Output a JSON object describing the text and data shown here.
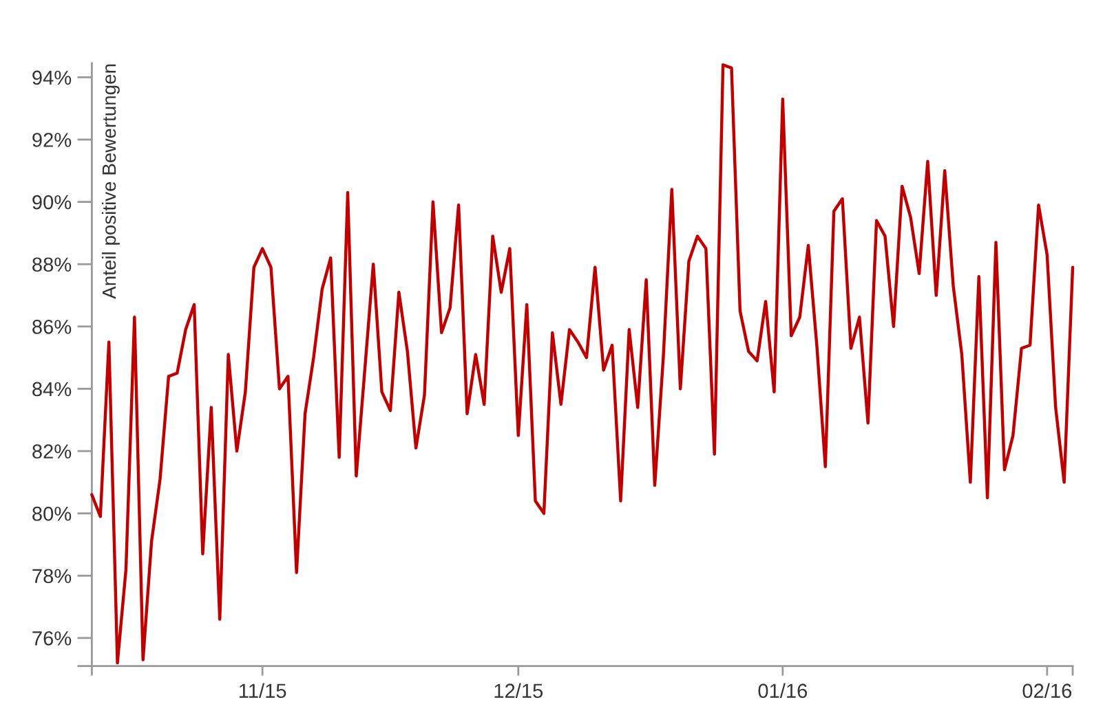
{
  "chart_data": {
    "type": "line",
    "ylabel": "Anteil positive Bewertungen",
    "x": [
      "2015-10-12",
      "2015-10-13",
      "2015-10-14",
      "2015-10-15",
      "2015-10-16",
      "2015-10-17",
      "2015-10-18",
      "2015-10-19",
      "2015-10-20",
      "2015-10-21",
      "2015-10-22",
      "2015-10-23",
      "2015-10-24",
      "2015-10-25",
      "2015-10-26",
      "2015-10-27",
      "2015-10-28",
      "2015-10-29",
      "2015-10-30",
      "2015-10-31",
      "2015-11-01",
      "2015-11-02",
      "2015-11-03",
      "2015-11-04",
      "2015-11-05",
      "2015-11-06",
      "2015-11-07",
      "2015-11-08",
      "2015-11-09",
      "2015-11-10",
      "2015-11-11",
      "2015-11-12",
      "2015-11-13",
      "2015-11-14",
      "2015-11-15",
      "2015-11-16",
      "2015-11-17",
      "2015-11-18",
      "2015-11-19",
      "2015-11-20",
      "2015-11-21",
      "2015-11-22",
      "2015-11-23",
      "2015-11-24",
      "2015-11-25",
      "2015-11-26",
      "2015-11-27",
      "2015-11-28",
      "2015-11-29",
      "2015-11-30",
      "2015-12-01",
      "2015-12-02",
      "2015-12-03",
      "2015-12-04",
      "2015-12-05",
      "2015-12-06",
      "2015-12-07",
      "2015-12-08",
      "2015-12-09",
      "2015-12-10",
      "2015-12-11",
      "2015-12-12",
      "2015-12-13",
      "2015-12-14",
      "2015-12-15",
      "2015-12-16",
      "2015-12-17",
      "2015-12-18",
      "2015-12-19",
      "2015-12-20",
      "2015-12-21",
      "2015-12-22",
      "2015-12-23",
      "2015-12-24",
      "2015-12-25",
      "2015-12-26",
      "2015-12-27",
      "2015-12-28",
      "2015-12-29",
      "2015-12-30",
      "2015-12-31",
      "2016-01-01",
      "2016-01-02",
      "2016-01-03",
      "2016-01-04",
      "2016-01-05",
      "2016-01-06",
      "2016-01-07",
      "2016-01-08",
      "2016-01-09",
      "2016-01-10",
      "2016-01-11",
      "2016-01-12",
      "2016-01-13",
      "2016-01-14",
      "2016-01-15",
      "2016-01-16",
      "2016-01-17",
      "2016-01-18",
      "2016-01-19",
      "2016-01-20",
      "2016-01-21",
      "2016-01-22",
      "2016-01-23",
      "2016-01-24",
      "2016-01-25",
      "2016-01-26",
      "2016-01-27",
      "2016-01-28",
      "2016-01-29",
      "2016-01-30",
      "2016-01-31",
      "2016-02-01",
      "2016-02-02",
      "2016-02-03",
      "2016-02-04"
    ],
    "series": [
      {
        "color": "#c00000",
        "values": [
          80.6,
          79.9,
          85.5,
          75.2,
          78.2,
          86.3,
          75.3,
          79.1,
          81.1,
          84.4,
          84.5,
          85.9,
          86.7,
          78.7,
          83.4,
          76.6,
          85.1,
          82.0,
          83.9,
          87.9,
          88.5,
          87.9,
          84.0,
          84.4,
          78.1,
          83.2,
          85.0,
          87.2,
          88.2,
          81.8,
          90.3,
          81.2,
          84.6,
          88.0,
          83.9,
          83.3,
          87.1,
          85.2,
          82.1,
          83.8,
          90.0,
          85.8,
          86.6,
          89.9,
          83.2,
          85.1,
          83.5,
          88.9,
          87.1,
          88.5,
          82.5,
          86.7,
          80.4,
          80.0,
          85.8,
          83.5,
          85.9,
          85.5,
          85.0,
          87.9,
          84.6,
          85.4,
          80.4,
          85.9,
          83.4,
          87.5,
          80.9,
          85.0,
          90.4,
          84.0,
          88.1,
          88.9,
          88.5,
          81.9,
          94.4,
          94.3,
          86.5,
          85.2,
          84.9,
          86.8,
          83.9,
          93.3,
          85.7,
          86.3,
          88.6,
          85.4,
          81.5,
          89.7,
          90.1,
          85.3,
          86.3,
          82.9,
          89.4,
          88.9,
          86.0,
          90.5,
          89.5,
          87.7,
          91.3,
          87.0,
          91.0,
          87.3,
          85.1,
          81.0,
          87.6,
          80.5,
          88.7,
          81.4,
          82.5,
          85.3,
          85.4,
          89.9,
          88.3,
          83.4,
          81.0,
          87.9
        ]
      }
    ],
    "xlim": [
      "2015-10-12",
      "2016-02-04"
    ],
    "xticks": [
      {
        "value": "2015-10-12",
        "label": null
      },
      {
        "value": "2015-11-01",
        "label": "11/15"
      },
      {
        "value": "2015-12-01",
        "label": "12/15"
      },
      {
        "value": "2016-01-01",
        "label": "01/16"
      },
      {
        "value": "2016-02-01",
        "label": "02/16"
      },
      {
        "value": "2016-02-04",
        "label": null
      }
    ],
    "ylim": [
      75.1,
      94.45
    ],
    "yticks": [
      {
        "value": 75.1,
        "label": null
      },
      {
        "value": 76,
        "label": "76%"
      },
      {
        "value": 78,
        "label": "78%"
      },
      {
        "value": 80,
        "label": "80%"
      },
      {
        "value": 82,
        "label": "82%"
      },
      {
        "value": 84,
        "label": "84%"
      },
      {
        "value": 86,
        "label": "86%"
      },
      {
        "value": 88,
        "label": "88%"
      },
      {
        "value": 90,
        "label": "90%"
      },
      {
        "value": 92,
        "label": "92%"
      },
      {
        "value": 94,
        "label": "94%"
      }
    ],
    "grid": false,
    "marker": "none",
    "line_style": "solid"
  }
}
